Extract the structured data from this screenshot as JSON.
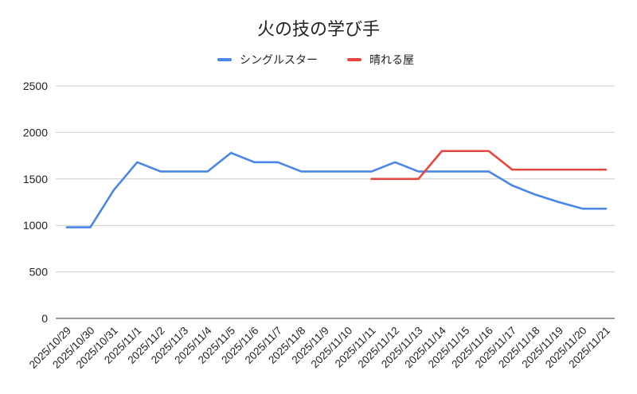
{
  "chart_data": {
    "type": "line",
    "title": "火の技の学び手",
    "xlabel": "",
    "ylabel": "",
    "ylim": [
      0,
      2500
    ],
    "yticks": [
      "0",
      "500",
      "1000",
      "1500",
      "2000",
      "2500"
    ],
    "grid": true,
    "legend_position": "top",
    "categories": [
      "2025/10/29",
      "2025/10/30",
      "2025/10/31",
      "2025/11/1",
      "2025/11/2",
      "2025/11/3",
      "2025/11/4",
      "2025/11/5",
      "2025/11/6",
      "2025/11/7",
      "2025/11/8",
      "2025/11/9",
      "2025/11/10",
      "2025/11/11",
      "2025/11/12",
      "2025/11/13",
      "2025/11/14",
      "2025/11/15",
      "2025/11/16",
      "2025/11/17",
      "2025/11/18",
      "2025/11/19",
      "2025/11/20",
      "2025/11/21"
    ],
    "series": [
      {
        "name": "シングルスター",
        "color": "#4a86e8",
        "values": [
          980,
          980,
          1380,
          1680,
          1580,
          1580,
          1580,
          1780,
          1680,
          1680,
          1580,
          1580,
          1580,
          1580,
          1680,
          1580,
          1580,
          1580,
          1580,
          1430,
          1330,
          1250,
          1180,
          1180
        ]
      },
      {
        "name": "晴れる屋",
        "color": "#e8453c",
        "values": [
          null,
          null,
          null,
          null,
          null,
          null,
          null,
          null,
          null,
          null,
          null,
          null,
          null,
          1500,
          1500,
          1500,
          1800,
          1800,
          1800,
          1600,
          1600,
          1600,
          1600,
          1600
        ]
      }
    ]
  }
}
